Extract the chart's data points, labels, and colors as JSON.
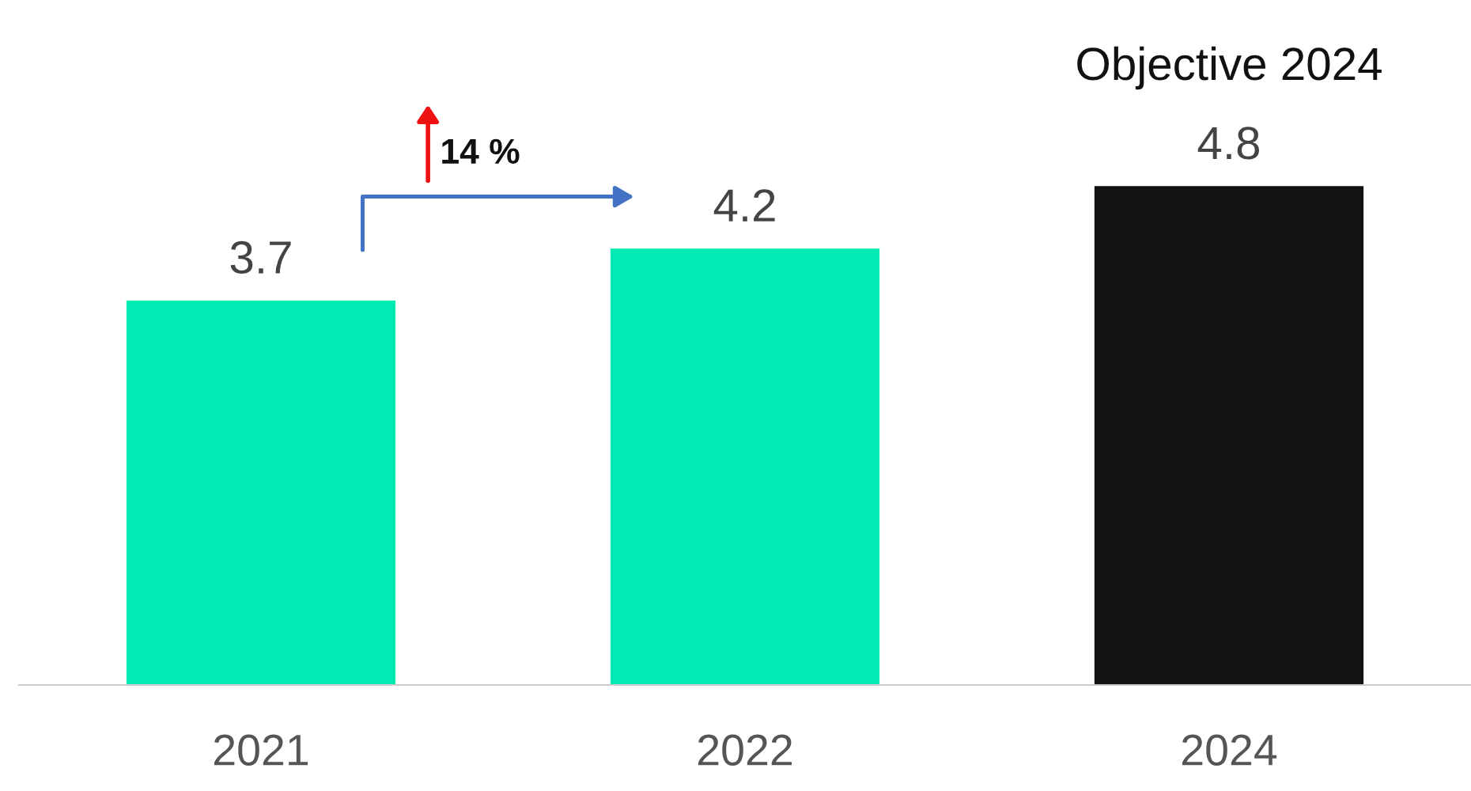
{
  "chart_data": {
    "type": "bar",
    "categories": [
      "2021",
      "2022",
      "2024"
    ],
    "values": [
      3.7,
      4.2,
      4.8
    ],
    "colors": [
      "#00ebb4",
      "#00ebb4",
      "#121212"
    ],
    "data_labels": true,
    "grid": false,
    "annotations": [
      {
        "text": "Objective 2024",
        "x": "2024",
        "y": 4.8
      },
      "14 %"
    ]
  }
}
